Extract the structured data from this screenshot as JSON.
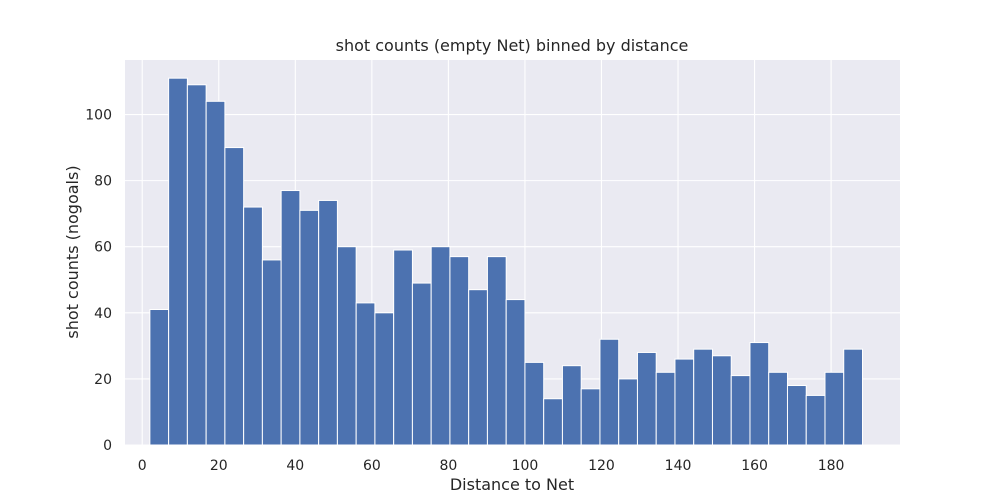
{
  "chart_data": {
    "type": "bar",
    "title": "shot counts (empty Net) binned by distance",
    "xlabel": "Distance to Net",
    "ylabel": "shot counts (nogoals)",
    "xlim": [
      -4.5,
      198
    ],
    "ylim": [
      0,
      116.5
    ],
    "xticks": [
      0,
      20,
      40,
      60,
      80,
      100,
      120,
      140,
      160,
      180
    ],
    "yticks": [
      0,
      20,
      40,
      60,
      80,
      100
    ],
    "bin_edges": [
      2,
      6.9,
      11.8,
      16.7,
      21.6,
      26.5,
      31.4,
      36.3,
      41.2,
      46.1,
      51.0,
      55.9,
      60.8,
      65.7,
      70.6,
      75.5,
      80.4,
      85.3,
      90.2,
      95.1,
      100.0,
      104.9,
      109.8,
      114.7,
      119.6,
      124.5,
      129.4,
      134.3,
      139.2,
      144.1,
      149.0,
      153.9,
      158.8,
      163.7,
      168.6,
      173.5,
      178.4,
      183.3,
      188.2
    ],
    "values": [
      41,
      111,
      109,
      104,
      90,
      72,
      56,
      77,
      71,
      74,
      60,
      43,
      40,
      59,
      49,
      60,
      57,
      47,
      57,
      44,
      25,
      14,
      24,
      17,
      32,
      20,
      28,
      22,
      26,
      29,
      27,
      21,
      31,
      22,
      18,
      15,
      22,
      29
    ],
    "bar_color": "#4c72b0",
    "background_color": "#eaeaf2",
    "grid": true,
    "legend": "none"
  }
}
